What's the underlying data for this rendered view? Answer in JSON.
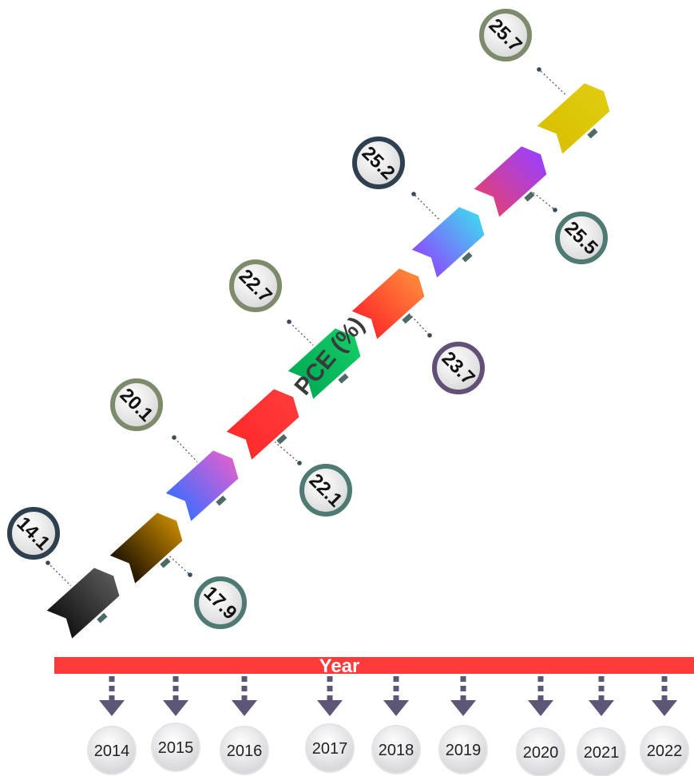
{
  "chart_data": {
    "type": "bar",
    "ylabel": "PCE (%)",
    "xlabel": "Year",
    "categories": [
      "2014",
      "2015",
      "2016",
      "2017",
      "2018",
      "2019",
      "2020",
      "2021",
      "2022"
    ],
    "values": [
      14.1,
      17.9,
      20.1,
      22.1,
      22.7,
      23.7,
      25.2,
      25.5,
      25.7
    ],
    "segment_colors": [
      [
        "#111111",
        "#5a5a5a"
      ],
      [
        "#1a1000",
        "#c88a00"
      ],
      [
        "#3d6dff",
        "#e060d0"
      ],
      [
        "#ff2a2a",
        "#ff3a3a"
      ],
      [
        "#00aa55",
        "#15cc66"
      ],
      [
        "#ff2a2a",
        "#ff8c3a"
      ],
      [
        "#8a4dff",
        "#40d8f0"
      ],
      [
        "#e0407a",
        "#9a40ff"
      ],
      [
        "#d8c000",
        "#e0cc10"
      ]
    ],
    "ring_colors": [
      "#2e3f50",
      "#4e7a73",
      "#7d8a6c",
      "#4e7a73",
      "#7d8a6c",
      "#625078",
      "#2e3f50",
      "#4e7a73",
      "#7d8a6c"
    ],
    "axis_color": "#ff3a3a",
    "arrow_color": "#5e5577"
  }
}
